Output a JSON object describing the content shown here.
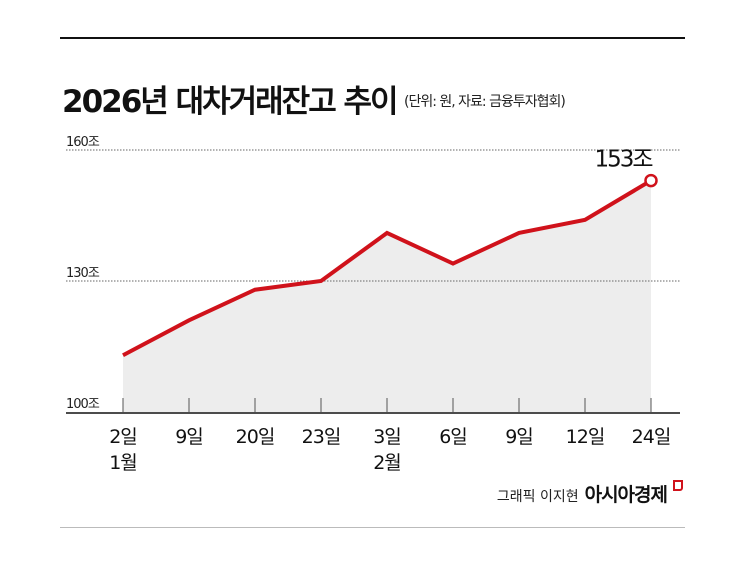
{
  "chart_data": {
    "type": "area",
    "title": "2026년 대차거래잔고 추이",
    "subtitle": "(단위: 원, 자료: 금융투자협회)",
    "categories": [
      "2일\n1월",
      "9일",
      "20일",
      "23일",
      "3일\n2월",
      "6일",
      "9일",
      "12일",
      "24일"
    ],
    "values": [
      113,
      121,
      128,
      130,
      141,
      134,
      141,
      144,
      153
    ],
    "ylim": [
      100,
      160
    ],
    "yticks": [
      100,
      130,
      160
    ],
    "ytick_labels": [
      "100조",
      "130조",
      "160조"
    ],
    "annotation": "153조",
    "grid": true,
    "colors": {
      "line": "#d0121b",
      "fill": "#ededed"
    }
  },
  "credit": {
    "graphic": "그래픽 이지현",
    "brand": "아시아경제"
  }
}
